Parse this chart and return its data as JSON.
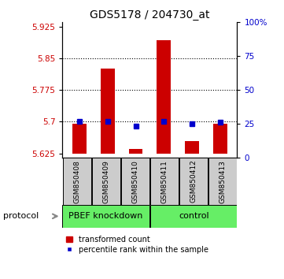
{
  "title": "GDS5178 / 204730_at",
  "samples": [
    "GSM850408",
    "GSM850409",
    "GSM850410",
    "GSM850411",
    "GSM850412",
    "GSM850413"
  ],
  "red_values": [
    5.695,
    5.825,
    5.635,
    5.892,
    5.655,
    5.695
  ],
  "blue_values": [
    5.7,
    5.7,
    5.69,
    5.7,
    5.695,
    5.698
  ],
  "baseline": 5.625,
  "ylim_left": [
    5.615,
    5.935
  ],
  "ylim_right": [
    0,
    100
  ],
  "left_ticks": [
    5.625,
    5.7,
    5.775,
    5.85,
    5.925
  ],
  "right_ticks": [
    0,
    25,
    50,
    75,
    100
  ],
  "right_tick_labels": [
    "0",
    "25",
    "50",
    "75",
    "100%"
  ],
  "hlines": [
    5.85,
    5.775,
    5.7
  ],
  "group1_label": "PBEF knockdown",
  "group2_label": "control",
  "protocol_label": "protocol",
  "legend_red": "transformed count",
  "legend_blue": "percentile rank within the sample",
  "bar_color": "#cc0000",
  "blue_color": "#0000cc",
  "group_color": "#66ee66",
  "sample_bg_color": "#cccccc",
  "title_fontsize": 10,
  "tick_fontsize": 7.5,
  "bar_width": 0.5
}
